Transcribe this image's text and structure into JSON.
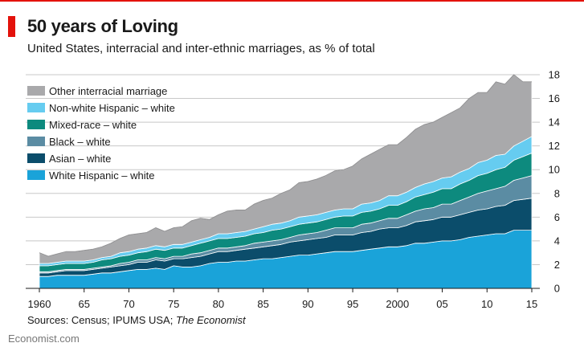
{
  "header": {
    "title": "50 years of Loving",
    "subtitle": "United States, interracial and inter-ethnic marriages, as % of total"
  },
  "footer": {
    "source_prefix": "Sources: Census; IPUMS USA; ",
    "source_italic": "The Economist",
    "brand": "Economist.com"
  },
  "colors": {
    "accent_red": "#e3120b",
    "grid": "#c8c8c8"
  },
  "chart_data": {
    "type": "area",
    "stacked": true,
    "x": [
      1960,
      1961,
      1962,
      1963,
      1964,
      1965,
      1966,
      1967,
      1968,
      1969,
      1970,
      1971,
      1972,
      1973,
      1974,
      1975,
      1976,
      1977,
      1978,
      1979,
      1980,
      1981,
      1982,
      1983,
      1984,
      1985,
      1986,
      1987,
      1988,
      1989,
      1990,
      1991,
      1992,
      1993,
      1994,
      1995,
      1996,
      1997,
      1998,
      1999,
      2000,
      2001,
      2002,
      2003,
      2004,
      2005,
      2006,
      2007,
      2008,
      2009,
      2010,
      2011,
      2012,
      2013,
      2014,
      2015
    ],
    "x_tick_values": [
      1960,
      1965,
      1970,
      1975,
      1980,
      1985,
      1990,
      1995,
      2000,
      2005,
      2010,
      2015
    ],
    "x_tick_labels": [
      "1960",
      "65",
      "70",
      "75",
      "80",
      "85",
      "90",
      "95",
      "2000",
      "05",
      "10",
      "15"
    ],
    "y_ticks": [
      0,
      2,
      4,
      6,
      8,
      10,
      12,
      14,
      16,
      18
    ],
    "ylim": [
      0,
      18
    ],
    "xlim": [
      1960,
      2015
    ],
    "grid": true,
    "y_axis_side": "right",
    "legend_position": "top-left",
    "series": [
      {
        "name": "White Hispanic – white",
        "color": "#1aa3d9",
        "values": [
          1.0,
          1.0,
          1.1,
          1.1,
          1.1,
          1.1,
          1.2,
          1.3,
          1.3,
          1.4,
          1.5,
          1.6,
          1.6,
          1.7,
          1.6,
          1.9,
          1.8,
          1.8,
          1.9,
          2.1,
          2.2,
          2.2,
          2.3,
          2.3,
          2.4,
          2.5,
          2.5,
          2.6,
          2.7,
          2.8,
          2.8,
          2.9,
          3.0,
          3.1,
          3.1,
          3.1,
          3.2,
          3.3,
          3.4,
          3.5,
          3.5,
          3.6,
          3.8,
          3.8,
          3.9,
          4.0,
          4.0,
          4.1,
          4.3,
          4.4,
          4.5,
          4.6,
          4.6,
          4.9,
          4.9,
          4.9
        ]
      },
      {
        "name": "Asian – white",
        "color": "#0b4d6b",
        "values": [
          0.3,
          0.3,
          0.3,
          0.4,
          0.4,
          0.4,
          0.4,
          0.4,
          0.5,
          0.5,
          0.5,
          0.6,
          0.6,
          0.7,
          0.7,
          0.6,
          0.7,
          0.8,
          0.8,
          0.8,
          0.9,
          0.9,
          0.9,
          1.0,
          1.0,
          1.0,
          1.1,
          1.1,
          1.2,
          1.2,
          1.3,
          1.3,
          1.3,
          1.4,
          1.4,
          1.4,
          1.5,
          1.5,
          1.6,
          1.6,
          1.6,
          1.7,
          1.8,
          1.9,
          1.9,
          2.0,
          2.0,
          2.1,
          2.1,
          2.2,
          2.2,
          2.3,
          2.4,
          2.5,
          2.6,
          2.7
        ]
      },
      {
        "name": "Black – white",
        "color": "#5b8ca3",
        "values": [
          0.1,
          0.1,
          0.1,
          0.1,
          0.1,
          0.1,
          0.1,
          0.1,
          0.1,
          0.2,
          0.2,
          0.2,
          0.2,
          0.2,
          0.2,
          0.2,
          0.2,
          0.3,
          0.3,
          0.3,
          0.3,
          0.3,
          0.3,
          0.3,
          0.4,
          0.4,
          0.4,
          0.4,
          0.4,
          0.5,
          0.5,
          0.5,
          0.6,
          0.6,
          0.6,
          0.6,
          0.7,
          0.7,
          0.7,
          0.8,
          0.8,
          0.9,
          0.9,
          1.0,
          1.0,
          1.1,
          1.1,
          1.2,
          1.3,
          1.4,
          1.5,
          1.5,
          1.6,
          1.7,
          1.8,
          1.9
        ]
      },
      {
        "name": "Mixed-race – white",
        "color": "#0d8a7e",
        "values": [
          0.5,
          0.5,
          0.5,
          0.5,
          0.5,
          0.5,
          0.5,
          0.6,
          0.6,
          0.6,
          0.6,
          0.6,
          0.7,
          0.7,
          0.7,
          0.7,
          0.7,
          0.7,
          0.8,
          0.8,
          0.8,
          0.8,
          0.8,
          0.8,
          0.8,
          0.8,
          0.9,
          0.9,
          0.9,
          0.9,
          0.9,
          0.9,
          0.9,
          0.9,
          1.0,
          1.0,
          1.0,
          1.0,
          1.0,
          1.1,
          1.1,
          1.1,
          1.2,
          1.2,
          1.3,
          1.3,
          1.3,
          1.4,
          1.4,
          1.5,
          1.5,
          1.6,
          1.6,
          1.7,
          1.8,
          1.9
        ]
      },
      {
        "name": "Non-white Hispanic – white",
        "color": "#66ccf0",
        "values": [
          0.2,
          0.2,
          0.2,
          0.2,
          0.2,
          0.2,
          0.2,
          0.2,
          0.2,
          0.3,
          0.3,
          0.3,
          0.3,
          0.3,
          0.3,
          0.3,
          0.3,
          0.3,
          0.3,
          0.3,
          0.4,
          0.4,
          0.4,
          0.4,
          0.4,
          0.5,
          0.5,
          0.5,
          0.5,
          0.6,
          0.6,
          0.6,
          0.6,
          0.6,
          0.6,
          0.6,
          0.7,
          0.7,
          0.7,
          0.8,
          0.8,
          0.8,
          0.8,
          0.9,
          0.9,
          0.9,
          1.0,
          1.0,
          1.0,
          1.1,
          1.1,
          1.2,
          1.1,
          1.2,
          1.3,
          1.4
        ]
      },
      {
        "name": "Other interracial marriage",
        "color": "#a9a9ab",
        "values": [
          0.9,
          0.6,
          0.7,
          0.8,
          0.8,
          0.9,
          0.9,
          0.9,
          1.1,
          1.2,
          1.4,
          1.3,
          1.3,
          1.5,
          1.3,
          1.4,
          1.5,
          1.8,
          1.8,
          1.5,
          1.6,
          1.9,
          1.9,
          1.8,
          2.1,
          2.2,
          2.2,
          2.5,
          2.6,
          2.9,
          2.9,
          3.0,
          3.1,
          3.3,
          3.3,
          3.6,
          3.8,
          4.1,
          4.3,
          4.3,
          4.3,
          4.6,
          4.9,
          5.0,
          5.0,
          5.1,
          5.4,
          5.4,
          5.9,
          5.9,
          5.7,
          6.2,
          5.9,
          6.0,
          5.0,
          4.6
        ]
      }
    ]
  }
}
